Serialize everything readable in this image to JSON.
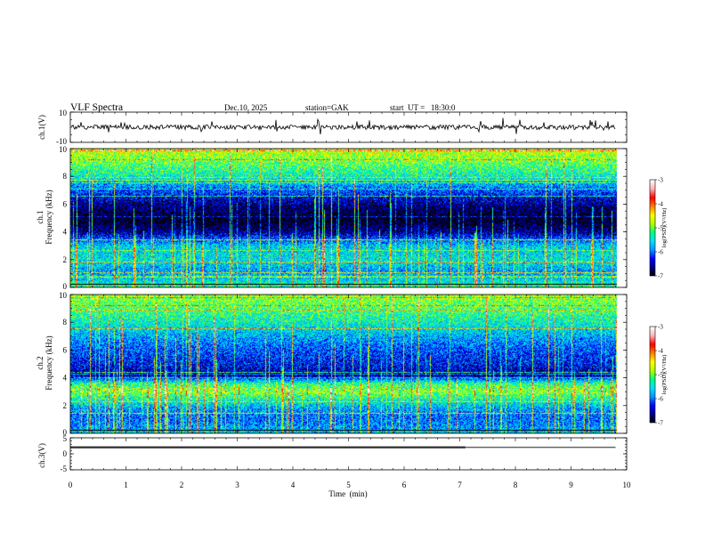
{
  "header": {
    "title": "VLF Spectra",
    "date": "Dec.10, 2025",
    "station": "station=GAK",
    "start_ut": "start  UT =   18:30:0"
  },
  "colors": {
    "colormap": [
      "#000000",
      "#00008b",
      "#0000ff",
      "#0096ff",
      "#00e0ff",
      "#00ff80",
      "#b4ff00",
      "#ffff00",
      "#ff8000",
      "#ff0000",
      "#ffb4b4",
      "#ffffff"
    ],
    "trace": "#000000",
    "axis": "#000000"
  },
  "chart_data": [
    {
      "type": "line",
      "id": "ch1-waveform",
      "ylabel": "ch.1(V)",
      "ylim": [
        -10,
        10
      ],
      "yticks": [
        10,
        -10
      ],
      "xlim": [
        0,
        10
      ],
      "baseline": 0,
      "noise_amplitude": 1.5
    },
    {
      "type": "heatmap",
      "id": "ch1-spectrogram",
      "ylabel_channel": "ch.1",
      "ylabel": "Frequency (kHz)",
      "ylim": [
        0,
        10
      ],
      "yticks": [
        0,
        2,
        4,
        6,
        8,
        10
      ],
      "xlim": [
        0,
        10
      ],
      "data_end_min": 9.8,
      "colorbar": {
        "label": "log(PSD)(V²/Hz)",
        "range": [
          -7,
          -3
        ],
        "ticks": [
          -3,
          -4,
          -5,
          -6,
          -7
        ]
      },
      "profile_freq_khz": [
        0.0,
        0.6,
        1.2,
        2.0,
        3.0,
        4.0,
        4.8,
        5.6,
        6.5,
        8.0,
        10.0
      ],
      "profile_log_psd": [
        -5.2,
        -5.6,
        -5.8,
        -5.5,
        -5.6,
        -6.6,
        -7.0,
        -6.8,
        -6.4,
        -5.4,
        -4.6
      ]
    },
    {
      "type": "heatmap",
      "id": "ch2-spectrogram",
      "ylabel_channel": "ch.2",
      "ylabel": "Frequency (kHz)",
      "ylim": [
        0,
        10
      ],
      "yticks": [
        0,
        2,
        4,
        6,
        8,
        10
      ],
      "xlim": [
        0,
        10
      ],
      "data_end_min": 9.8,
      "colorbar": {
        "label": "log(PSD)(V²/Hz)",
        "range": [
          -7,
          -3
        ],
        "ticks": [
          -3,
          -4,
          -5,
          -6,
          -7
        ]
      },
      "profile_freq_khz": [
        0.0,
        0.6,
        1.2,
        1.8,
        2.4,
        3.0,
        3.6,
        4.2,
        5.0,
        6.0,
        8.0,
        10.0
      ],
      "profile_log_psd": [
        -5.6,
        -5.9,
        -6.0,
        -5.8,
        -5.4,
        -4.9,
        -5.2,
        -6.6,
        -6.3,
        -6.1,
        -5.4,
        -4.8
      ]
    },
    {
      "type": "line",
      "id": "ch3-waveform",
      "ylabel": "ch.3(V)",
      "ylim": [
        -5,
        5
      ],
      "yticks": [
        5,
        0,
        -5
      ],
      "xlim": [
        0,
        10
      ],
      "xlabel": "Time  (min)",
      "xticks": [
        0,
        1,
        2,
        3,
        4,
        5,
        6,
        7,
        8,
        9,
        10
      ],
      "level_v": 2,
      "pulse_train_end_min": 7.1,
      "data_end_min": 9.8
    }
  ]
}
